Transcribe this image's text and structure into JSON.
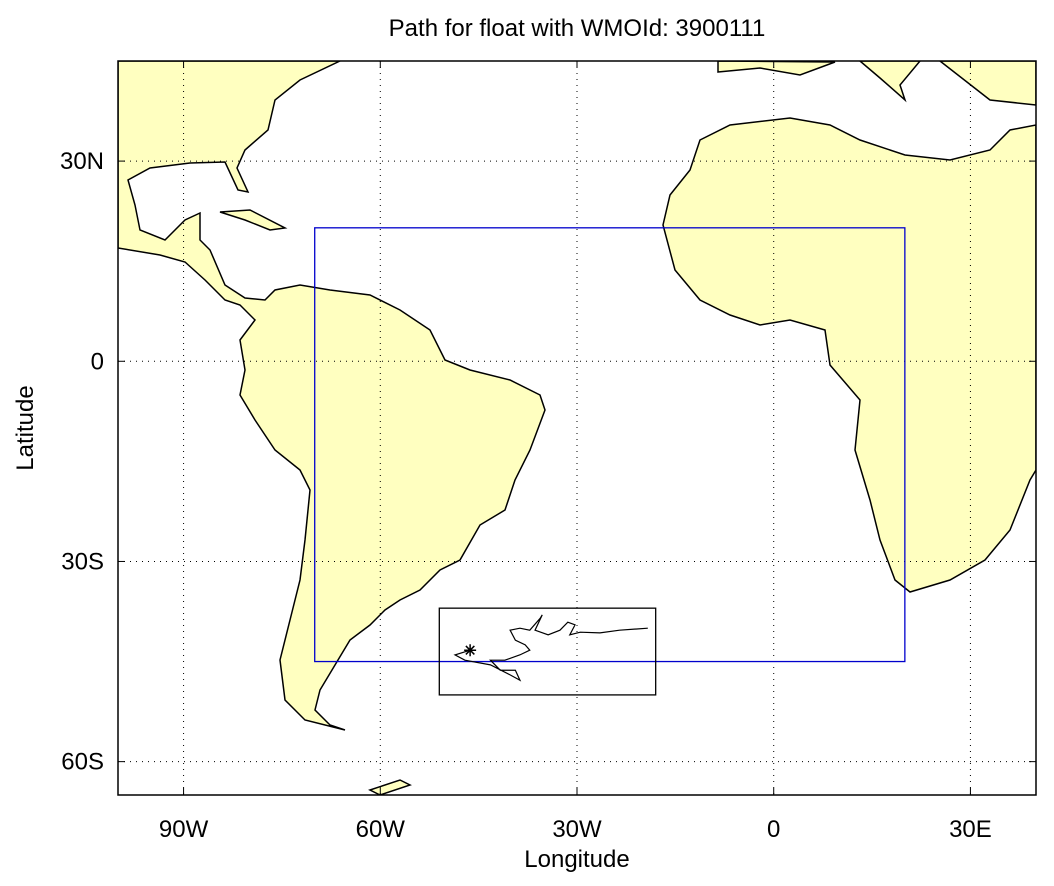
{
  "chart_data": {
    "type": "map",
    "title": "Path for float with WMOId: 3900111",
    "xlabel": "Longitude",
    "ylabel": "Latitude",
    "xlim": [
      -100,
      40
    ],
    "ylim": [
      -65,
      45
    ],
    "xticks": [
      {
        "value": -90,
        "label": "90W"
      },
      {
        "value": -60,
        "label": "60W"
      },
      {
        "value": -30,
        "label": "30W"
      },
      0,
      {
        "value": 30,
        "label": "30E"
      }
    ],
    "yticks": [
      {
        "value": -60,
        "label": "60S"
      },
      {
        "value": -30,
        "label": "30S"
      },
      0,
      {
        "value": 30,
        "label": "30N"
      }
    ],
    "grid": true,
    "land_color": "#ffffc0",
    "regions": [
      {
        "lon": [
          -70,
          20
        ],
        "lat": [
          -45,
          20
        ],
        "color": "#0000cc"
      },
      {
        "lon": [
          -51,
          -18
        ],
        "lat": [
          -50,
          -37
        ],
        "color": "#000000"
      }
    ],
    "track": {
      "color": "#000000",
      "x": [
        -46.3,
        -48.6,
        -47.1,
        -43.2,
        -40.2,
        -38.7,
        -39.4,
        -41.7,
        -43.2,
        -41.0,
        -38.7,
        -37.2,
        -37.9,
        -39.4,
        -40.2,
        -38.7,
        -37.2,
        -35.6,
        -35.3,
        -36.4,
        -34.4,
        -32.6,
        -31.4,
        -30.3,
        -31.1,
        -29.5,
        -26.5,
        -23.5,
        -19.2
      ],
      "y": [
        -43.3,
        -44.0,
        -44.8,
        -45.5,
        -47.0,
        -47.8,
        -46.3,
        -46.3,
        -44.8,
        -44.8,
        -44.0,
        -43.3,
        -42.5,
        -41.8,
        -40.3,
        -40.0,
        -40.3,
        -38.5,
        -38.0,
        -40.3,
        -41.0,
        -40.3,
        -39.1,
        -39.5,
        -41.0,
        -40.6,
        -40.7,
        -40.3,
        -40.0
      ]
    }
  }
}
